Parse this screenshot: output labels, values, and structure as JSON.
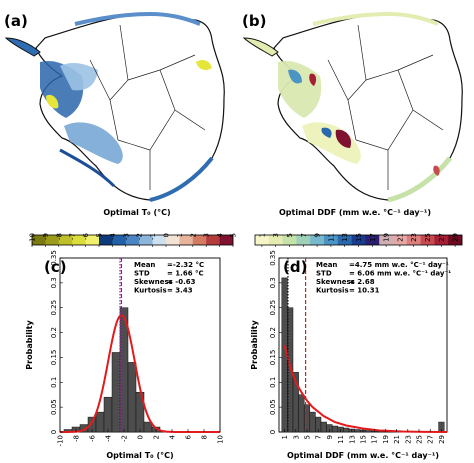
{
  "panels": {
    "a": {
      "label": "(a)"
    },
    "b": {
      "label": "(b)"
    },
    "c": {
      "label": "(c)"
    },
    "d": {
      "label": "(d)"
    }
  },
  "colorbar_a": {
    "title": "Optimal T₀ (°C)",
    "ticks": [
      "-10",
      "-9",
      "-8",
      "-7",
      "-6",
      "-5",
      "-4",
      "-3",
      "-2",
      "-1",
      "0",
      "1",
      "2",
      "3",
      "4",
      "5"
    ],
    "colors": [
      "#7a7a10",
      "#9b9b1c",
      "#bfbf2a",
      "#dcdc3c",
      "#f0f06c",
      "#0e3a7a",
      "#2260a8",
      "#4b85c2",
      "#8db4db",
      "#cde0ef",
      "#f1e3d5",
      "#e7b59b",
      "#d37a62",
      "#b43c3c",
      "#7e1230"
    ]
  },
  "colorbar_b": {
    "title": "Optimal DDF (mm w.e. °C⁻¹ day⁻¹)",
    "ticks": [
      "1",
      "3",
      "5",
      "7",
      "9",
      "11",
      "13",
      "15",
      "17",
      "19",
      "21",
      "23",
      "25",
      "27",
      "29"
    ],
    "colors": [
      "#f6f6c8",
      "#e4ecb2",
      "#c6e2a8",
      "#9fd0b8",
      "#77b8cc",
      "#4c94c4",
      "#2a68ae",
      "#1a3c8e",
      "#2a1e6e",
      "#d0aeb2",
      "#e6a8a6",
      "#dc7e7e",
      "#c64a50",
      "#a41e34",
      "#6e0a22"
    ]
  },
  "chart_data": [
    {
      "type": "bar",
      "panel": "c",
      "xlabel": "Optimal T₀ (°C)",
      "ylabel": "Probability",
      "xlim": [
        -10,
        10
      ],
      "ylim": [
        0,
        0.35
      ],
      "xticks": [
        "-10",
        "-8",
        "-6",
        "-4",
        "-2",
        "0",
        "2",
        "4",
        "6",
        "8",
        "10"
      ],
      "yticks": [
        "0",
        "0.05",
        "0.1",
        "0.15",
        "0.2",
        "0.25",
        "0.3",
        "0.35"
      ],
      "bin_width": 1,
      "bins": [
        {
          "x": -9,
          "value": 0.005
        },
        {
          "x": -8,
          "value": 0.01
        },
        {
          "x": -7,
          "value": 0.015
        },
        {
          "x": -6,
          "value": 0.03
        },
        {
          "x": -5,
          "value": 0.04
        },
        {
          "x": -4,
          "value": 0.07
        },
        {
          "x": -3,
          "value": 0.16
        },
        {
          "x": -2,
          "value": 0.25
        },
        {
          "x": -1,
          "value": 0.14
        },
        {
          "x": 0,
          "value": 0.08
        },
        {
          "x": 1,
          "value": 0.02
        },
        {
          "x": 2,
          "value": 0.01
        }
      ],
      "fit_curve": {
        "type": "normal",
        "mu": -2.32,
        "sigma": 1.66,
        "peak": 0.235,
        "color": "#e31a1c"
      },
      "mean_line": {
        "x": -2.32,
        "color": "#3b3bd6"
      },
      "mode_line": {
        "x": -2.5,
        "color": "#c0188c"
      },
      "stats": [
        {
          "label": "Mean",
          "value": "=-2.32 °C"
        },
        {
          "label": "STD",
          "value": "= 1.66 °C"
        },
        {
          "label": "Skewness",
          "value": "= -0.63"
        },
        {
          "label": "Kurtosis",
          "value": "= 3.43"
        }
      ]
    },
    {
      "type": "bar",
      "panel": "d",
      "xlabel": "Optimal DDF (mm w.e. °C⁻¹ day⁻¹)",
      "ylabel": "Probability",
      "xlim": [
        0,
        30
      ],
      "ylim": [
        0,
        0.35
      ],
      "xticks": [
        "1",
        "3",
        "5",
        "7",
        "9",
        "11",
        "13",
        "15",
        "17",
        "19",
        "21",
        "23",
        "25",
        "27",
        "29"
      ],
      "yticks": [
        "0",
        "0.05",
        "0.1",
        "0.15",
        "0.2",
        "0.25",
        "0.3",
        "0.35"
      ],
      "bin_width": 1,
      "bins": [
        {
          "x": 1,
          "value": 0.31
        },
        {
          "x": 2,
          "value": 0.25
        },
        {
          "x": 3,
          "value": 0.12
        },
        {
          "x": 4,
          "value": 0.075
        },
        {
          "x": 5,
          "value": 0.055
        },
        {
          "x": 6,
          "value": 0.04
        },
        {
          "x": 7,
          "value": 0.03
        },
        {
          "x": 8,
          "value": 0.02
        },
        {
          "x": 9,
          "value": 0.015
        },
        {
          "x": 10,
          "value": 0.012
        },
        {
          "x": 11,
          "value": 0.01
        },
        {
          "x": 12,
          "value": 0.008
        },
        {
          "x": 13,
          "value": 0.006
        },
        {
          "x": 14,
          "value": 0.005
        },
        {
          "x": 15,
          "value": 0.004
        },
        {
          "x": 16,
          "value": 0.003
        },
        {
          "x": 17,
          "value": 0.002
        },
        {
          "x": 18,
          "value": 0.002
        },
        {
          "x": 19,
          "value": 0.001
        },
        {
          "x": 20,
          "value": 0.001
        },
        {
          "x": 29,
          "value": 0.02
        }
      ],
      "fit_curve": {
        "type": "decay",
        "color": "#e31a1c",
        "points": [
          [
            1,
            0.175
          ],
          [
            2,
            0.13
          ],
          [
            3,
            0.1
          ],
          [
            4,
            0.08
          ],
          [
            5,
            0.063
          ],
          [
            6,
            0.05
          ],
          [
            8,
            0.032
          ],
          [
            10,
            0.02
          ],
          [
            12,
            0.013
          ],
          [
            15,
            0.007
          ],
          [
            18,
            0.003
          ],
          [
            22,
            0.001
          ],
          [
            26,
            0.0003
          ],
          [
            30,
            0.0001
          ]
        ]
      },
      "mean_line": {
        "x": 4.75,
        "color": "#e31a1c"
      },
      "mode_line": {
        "x": 1.6,
        "color": "#111111"
      },
      "stats": [
        {
          "label": "Mean",
          "value": "=4.75 mm w.e. °C⁻¹ day⁻¹"
        },
        {
          "label": "STD",
          "value": "= 6.06 mm w.e. °C⁻¹ day⁻¹"
        },
        {
          "label": "Skewness",
          "value": "= 2.68"
        },
        {
          "label": "Kurtosis",
          "value": "= 10.31"
        }
      ]
    }
  ]
}
